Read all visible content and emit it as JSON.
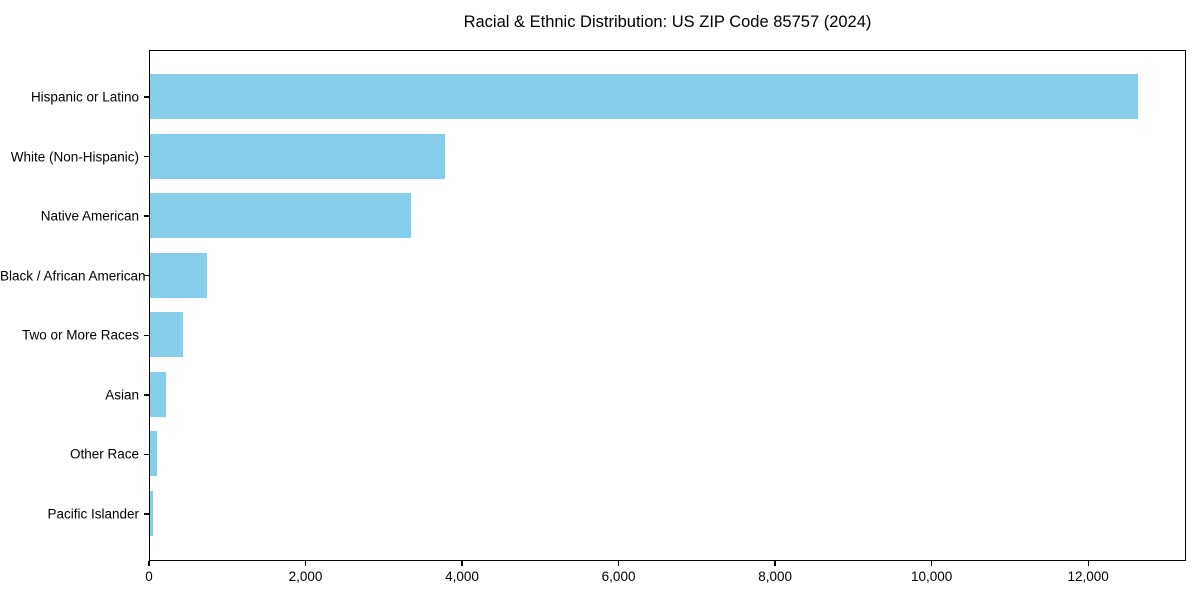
{
  "chart_data": {
    "type": "bar",
    "orientation": "horizontal",
    "title": "Racial & Ethnic Distribution: US ZIP Code 85757 (2024)",
    "categories": [
      "Hispanic or Latino",
      "White (Non-Hispanic)",
      "Native American",
      "Black / African American",
      "Two or More Races",
      "Asian",
      "Other Race",
      "Pacific Islander"
    ],
    "values": [
      12620,
      3765,
      3340,
      730,
      420,
      210,
      95,
      35
    ],
    "xlabel": "",
    "ylabel": "",
    "xlim": [
      0,
      13250
    ],
    "xticks": [
      0,
      2000,
      4000,
      6000,
      8000,
      10000,
      12000
    ],
    "xtick_labels": [
      "0",
      "2,000",
      "4,000",
      "6,000",
      "8,000",
      "10,000",
      "12,000"
    ],
    "bar_color": "#87CEEB",
    "text_color": "#000000",
    "spine_color": "#000000",
    "grid": false,
    "legend": false
  }
}
